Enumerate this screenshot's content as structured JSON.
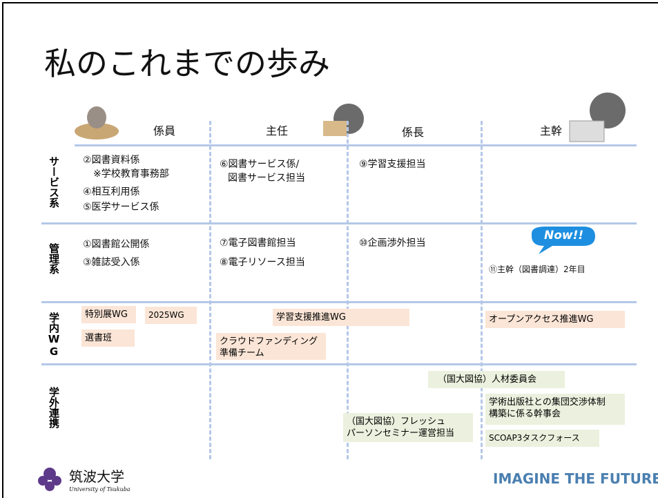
{
  "title": "私のこれまでの歩み",
  "columns": [
    "係員",
    "主任",
    "係長",
    "主幹"
  ],
  "rows": [
    {
      "label": "サービス系",
      "cells": [
        [
          "②図書資料係",
          "※学校教育事務部",
          "④相互利用係",
          "⑤医学サービス係"
        ],
        [
          "⑥図書サービス係/",
          "図書サービス担当"
        ],
        [
          "⑨学習支援担当"
        ],
        []
      ]
    },
    {
      "label": "管理系",
      "cells": [
        [
          "①図書館公開係",
          "③雑誌受入係"
        ],
        [
          "⑦電子図書館担当",
          "⑧電子リソース担当"
        ],
        [
          "⑩企画渉外担当"
        ],
        [
          "⑪主幹（図書調達）2年目"
        ]
      ]
    },
    {
      "label": "学内WG"
    },
    {
      "label": "学外連携"
    }
  ],
  "badge": "Now!!",
  "wg_boxes": [
    [
      "特別展WG"
    ],
    [
      "2025WG"
    ],
    [
      "選書班"
    ],
    [
      "学習支援推進WG"
    ],
    [
      "クラウドファンディング",
      "準備チーム"
    ],
    [
      "オープンアクセス推進WG"
    ]
  ],
  "external_boxes": [
    [
      "（国大図協）人材委員会"
    ],
    [
      "学術出版社との集団交渉体制",
      "構築に係る幹事会"
    ],
    [
      "（国大図協）フレッシュ",
      "パーソンセミナー運営担当"
    ],
    [
      "SCOAP3タスクフォース"
    ]
  ],
  "logo": {
    "name": "筑波大学",
    "subtitle": "University of Tsukuba"
  },
  "tagline": "IMAGINE THE FUTURE."
}
